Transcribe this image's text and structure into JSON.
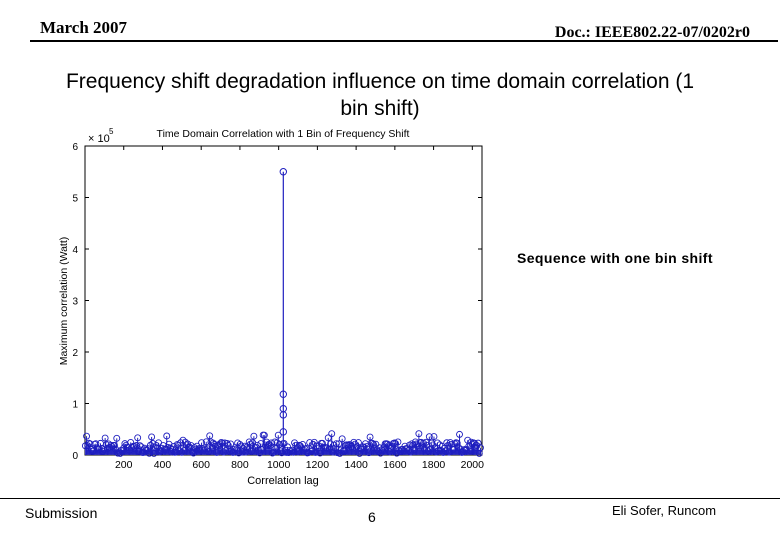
{
  "header": {
    "date": "March 2007",
    "doc": "Doc.: IEEE802.22-07/0202r0"
  },
  "slide_title": "Frequency shift degradation influence on time domain correlation (1 bin shift)",
  "annotation": "Sequence with one bin shift",
  "footer": {
    "left": "Submission",
    "page": "6",
    "author": "Eli Sofer, Runcom"
  },
  "chart_data": {
    "type": "stem",
    "title": "Time Domain Correlation with 1 Bin of Frequency Shift",
    "xlabel": "Correlation lag",
    "ylabel": "Maximum correlation (Watt)",
    "y_multiplier": "× 10",
    "y_exponent": "5",
    "xlim": [
      0,
      2050
    ],
    "ylim": [
      0,
      6
    ],
    "x_ticks": [
      200,
      400,
      600,
      800,
      1000,
      1200,
      1400,
      1600,
      1800,
      2000
    ],
    "y_ticks": [
      0,
      1,
      2,
      3,
      4,
      5,
      6
    ],
    "series_color": "#1f1fbf",
    "peak": {
      "x": 1024,
      "y": 5.5
    },
    "near_peak": [
      {
        "x": 1024,
        "y": 1.18
      },
      {
        "x": 1024,
        "y": 0.9
      },
      {
        "x": 1024,
        "y": 0.78
      },
      {
        "x": 1024,
        "y": 0.45
      }
    ],
    "noise_floor": {
      "typical_max": 0.25,
      "occasional_max": 0.42
    }
  }
}
